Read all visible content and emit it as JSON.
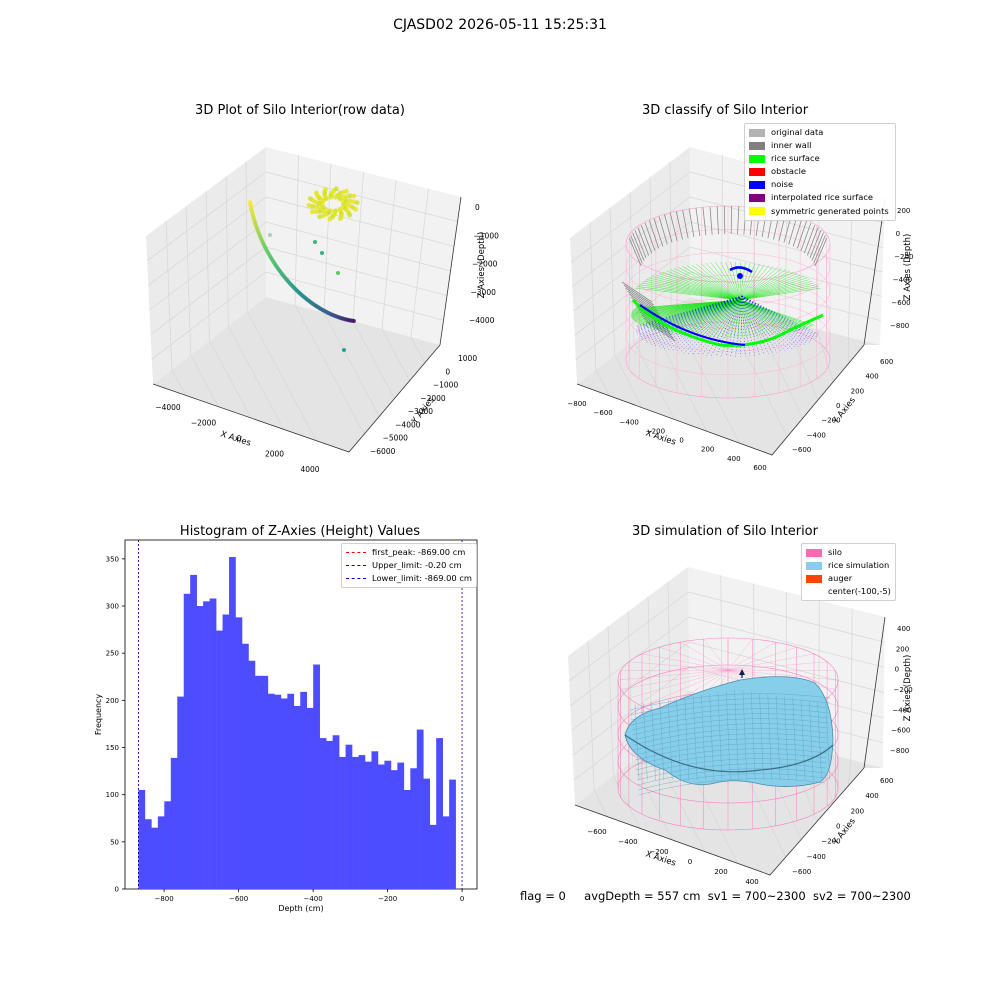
{
  "figure": {
    "suptitle": "CJASD02 2026-05-11 15:25:31",
    "footer": {
      "flag": "flag = 0",
      "avg_depth": "avgDepth = 557 cm",
      "sv1": "sv1 = 700~2300",
      "sv2": "sv2 = 700~2300"
    }
  },
  "chart_data": [
    {
      "type": "scatter",
      "title": "3D Plot of Silo Interior(row data)",
      "xlabel": "X Axies",
      "ylabel": "Y Axies",
      "zlabel": "Z Axies (Depth)",
      "x_ticks": [
        "−4000",
        "−2000",
        "0",
        "2000",
        "4000"
      ],
      "y_ticks": [
        "1000",
        "0",
        "−1000",
        "−2000",
        "−3000",
        "−4000",
        "−5000",
        "−6000"
      ],
      "z_ticks": [
        "0",
        "−1000",
        "−2000",
        "−3000",
        "−4000"
      ],
      "colormap": "viridis"
    },
    {
      "type": "scatter",
      "title": "3D classify of Silo Interior",
      "xlabel": "X Axies",
      "ylabel": "Y Axies",
      "zlabel": "Z Axies (Depth)",
      "x_ticks": [
        "−800",
        "−600",
        "−400",
        "−200",
        "0",
        "200",
        "400",
        "600"
      ],
      "y_ticks": [
        "600",
        "400",
        "200",
        "0",
        "−200",
        "−400",
        "−600"
      ],
      "z_ticks": [
        "200",
        "0",
        "−200",
        "−400",
        "−600",
        "−800"
      ],
      "z_ticks_visible": [
        "200",
        "0",
        "−200",
        "−400",
        "−600",
        "−800"
      ],
      "legend": [
        {
          "label": "original data",
          "color": "#b3b3b3"
        },
        {
          "label": "inner wall",
          "color": "#808080"
        },
        {
          "label": "rice surface",
          "color": "#00ff00"
        },
        {
          "label": "obstacle",
          "color": "#ff0000"
        },
        {
          "label": "noise",
          "color": "#0000ff"
        },
        {
          "label": "interpolated rice surface",
          "color": "#800080"
        },
        {
          "label": "symmetric generated points",
          "color": "#ffff00"
        }
      ],
      "legend_position": "top-right"
    },
    {
      "type": "bar",
      "title": "Histogram of Z-Axies (Height) Values",
      "xlabel": "Depth (cm)",
      "ylabel": "Frequency",
      "bar_color": "#4d4dff",
      "xlim": [
        -905,
        40
      ],
      "ylim": [
        0,
        370
      ],
      "x_ticks": [
        -800,
        -600,
        -400,
        -200,
        0
      ],
      "y_ticks": [
        0,
        50,
        100,
        150,
        200,
        250,
        300,
        350
      ],
      "bin_start": -869,
      "bin_width": 17.38,
      "values": [
        105,
        74,
        65,
        77,
        93,
        139,
        204,
        313,
        333,
        300,
        305,
        308,
        274,
        291,
        352,
        288,
        260,
        242,
        226,
        226,
        207,
        206,
        202,
        207,
        194,
        209,
        192,
        238,
        160,
        157,
        163,
        140,
        153,
        140,
        142,
        135,
        146,
        132,
        136,
        126,
        134,
        105,
        128,
        169,
        117,
        68,
        160,
        77,
        116
      ],
      "lines": [
        {
          "label": "first_peak: -869.00 cm",
          "x": -869.0,
          "color": "#ff0000"
        },
        {
          "label": "Upper_limit: -0.20 cm",
          "x": -0.2,
          "color": "#0000cd"
        },
        {
          "label": "Lower_limit: -869.00 cm",
          "x": -869.0,
          "color": "#0000cd"
        }
      ],
      "legend_position": "top-right"
    },
    {
      "type": "surface",
      "title": "3D simulation of Silo Interior",
      "xlabel": "X Axies",
      "ylabel": "Y Axies",
      "zlabel": "Z Axies (Depth)",
      "x_ticks": [
        "−600",
        "−400",
        "−200",
        "0",
        "200",
        "400"
      ],
      "y_ticks": [
        "600",
        "400",
        "200",
        "0",
        "−200",
        "−400",
        "−600"
      ],
      "z_ticks": [
        "400",
        "200",
        "0",
        "−200",
        "−400",
        "−600",
        "−800"
      ],
      "legend": [
        {
          "label": "silo",
          "color": "#ff69b4"
        },
        {
          "label": "rice simulation",
          "color": "#87ceeb"
        },
        {
          "label": "auger",
          "color": "#ff4500"
        },
        {
          "label": "center(-100,-5)",
          "color": ""
        }
      ],
      "legend_position": "top-right"
    }
  ]
}
